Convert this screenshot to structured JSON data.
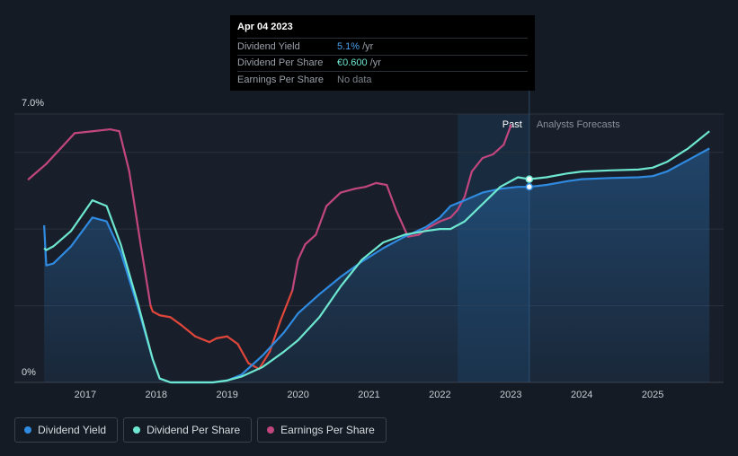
{
  "tooltip": {
    "date": "Apr 04 2023",
    "rows": [
      {
        "label": "Dividend Yield",
        "value": "5.1%",
        "unit": "/yr"
      },
      {
        "label": "Dividend Per Share",
        "value": "€0.600",
        "unit": "/yr"
      },
      {
        "label": "Earnings Per Share",
        "value": "No data",
        "unit": ""
      }
    ]
  },
  "legend": [
    {
      "label": "Dividend Yield",
      "color": "#2f8ae0"
    },
    {
      "label": "Dividend Per Share",
      "color": "#6ee7d0"
    },
    {
      "label": "Earnings Per Share",
      "color": "#c2467e"
    }
  ],
  "chart_data": {
    "type": "line",
    "y_tick_labels": [
      "7.0%",
      "0%"
    ],
    "ylim": [
      0,
      7.0
    ],
    "x_ticks": [
      2017,
      2018,
      2019,
      2020,
      2021,
      2022,
      2023,
      2024,
      2025
    ],
    "xlim": [
      2016.0,
      2026.0
    ],
    "past_label": "Past",
    "forecast_label": "Analysts Forecasts",
    "past_region_start": 2022.25,
    "today": 2023.26,
    "colors": {
      "yield": "#2f8ae0",
      "dps": "#6ee7d0",
      "eps_low": "#e0463a",
      "eps_high": "#c2467e"
    },
    "series": [
      {
        "name": "Dividend Yield",
        "x": [
          2016.42,
          2016.45,
          2016.55,
          2016.8,
          2017.1,
          2017.3,
          2017.5,
          2017.75,
          2017.95,
          2018.05,
          2018.2,
          2018.5,
          2018.8,
          2019.0,
          2019.2,
          2019.5,
          2019.8,
          2020.0,
          2020.3,
          2020.6,
          2020.9,
          2021.2,
          2021.5,
          2021.8,
          2022.0,
          2022.15,
          2022.35,
          2022.6,
          2022.85,
          2023.1,
          2023.26,
          2023.5,
          2023.8,
          2024.0,
          2024.4,
          2024.8,
          2025.0,
          2025.2,
          2025.5,
          2025.8
        ],
        "y": [
          4.1,
          3.05,
          3.1,
          3.55,
          4.3,
          4.2,
          3.4,
          1.9,
          0.6,
          0.1,
          0,
          0,
          0,
          0.05,
          0.2,
          0.7,
          1.3,
          1.8,
          2.3,
          2.75,
          3.15,
          3.5,
          3.8,
          4.05,
          4.3,
          4.6,
          4.75,
          4.95,
          5.05,
          5.1,
          5.1,
          5.15,
          5.25,
          5.3,
          5.33,
          5.35,
          5.38,
          5.5,
          5.8,
          6.1
        ]
      },
      {
        "name": "Dividend Per Share",
        "x": [
          2016.42,
          2016.45,
          2016.55,
          2016.8,
          2017.1,
          2017.3,
          2017.5,
          2017.75,
          2017.95,
          2018.05,
          2018.2,
          2018.5,
          2018.8,
          2019.0,
          2019.2,
          2019.5,
          2019.8,
          2020.0,
          2020.3,
          2020.6,
          2020.9,
          2021.2,
          2021.5,
          2021.8,
          2022.0,
          2022.15,
          2022.35,
          2022.6,
          2022.85,
          2023.1,
          2023.26,
          2023.5,
          2023.8,
          2024.0,
          2024.4,
          2024.8,
          2025.0,
          2025.2,
          2025.5,
          2025.8
        ],
        "y": [
          3.5,
          3.45,
          3.55,
          3.95,
          4.75,
          4.6,
          3.6,
          2.0,
          0.6,
          0.1,
          0,
          0,
          0,
          0.05,
          0.15,
          0.4,
          0.8,
          1.1,
          1.7,
          2.5,
          3.2,
          3.65,
          3.85,
          3.95,
          4.0,
          4.0,
          4.2,
          4.65,
          5.1,
          5.35,
          5.3,
          5.35,
          5.45,
          5.5,
          5.53,
          5.55,
          5.6,
          5.75,
          6.1,
          6.55
        ]
      },
      {
        "name": "Earnings Per Share",
        "x": [
          2016.2,
          2016.45,
          2016.65,
          2016.85,
          2017.1,
          2017.35,
          2017.48,
          2017.62,
          2017.78,
          2017.92,
          2017.95,
          2018.05,
          2018.2,
          2018.35,
          2018.55,
          2018.75,
          2018.85,
          2019.0,
          2019.15,
          2019.3,
          2019.45,
          2019.6,
          2019.75,
          2019.92,
          2020.0,
          2020.1,
          2020.25,
          2020.4,
          2020.6,
          2020.8,
          2020.95,
          2021.1,
          2021.25,
          2021.38,
          2021.55,
          2021.7,
          2021.85,
          2022.0,
          2022.15,
          2022.25,
          2022.35,
          2022.45,
          2022.6,
          2022.75,
          2022.9,
          2023.0
        ],
        "y": [
          5.3,
          5.7,
          6.1,
          6.5,
          6.55,
          6.6,
          6.55,
          5.5,
          3.6,
          2.0,
          1.85,
          1.75,
          1.7,
          1.5,
          1.2,
          1.05,
          1.15,
          1.2,
          1.0,
          0.5,
          0.35,
          0.8,
          1.6,
          2.4,
          3.2,
          3.6,
          3.85,
          4.6,
          4.95,
          5.05,
          5.1,
          5.2,
          5.15,
          4.5,
          3.8,
          3.85,
          4.05,
          4.2,
          4.3,
          4.5,
          4.85,
          5.5,
          5.85,
          5.95,
          6.2,
          6.7
        ]
      }
    ]
  }
}
